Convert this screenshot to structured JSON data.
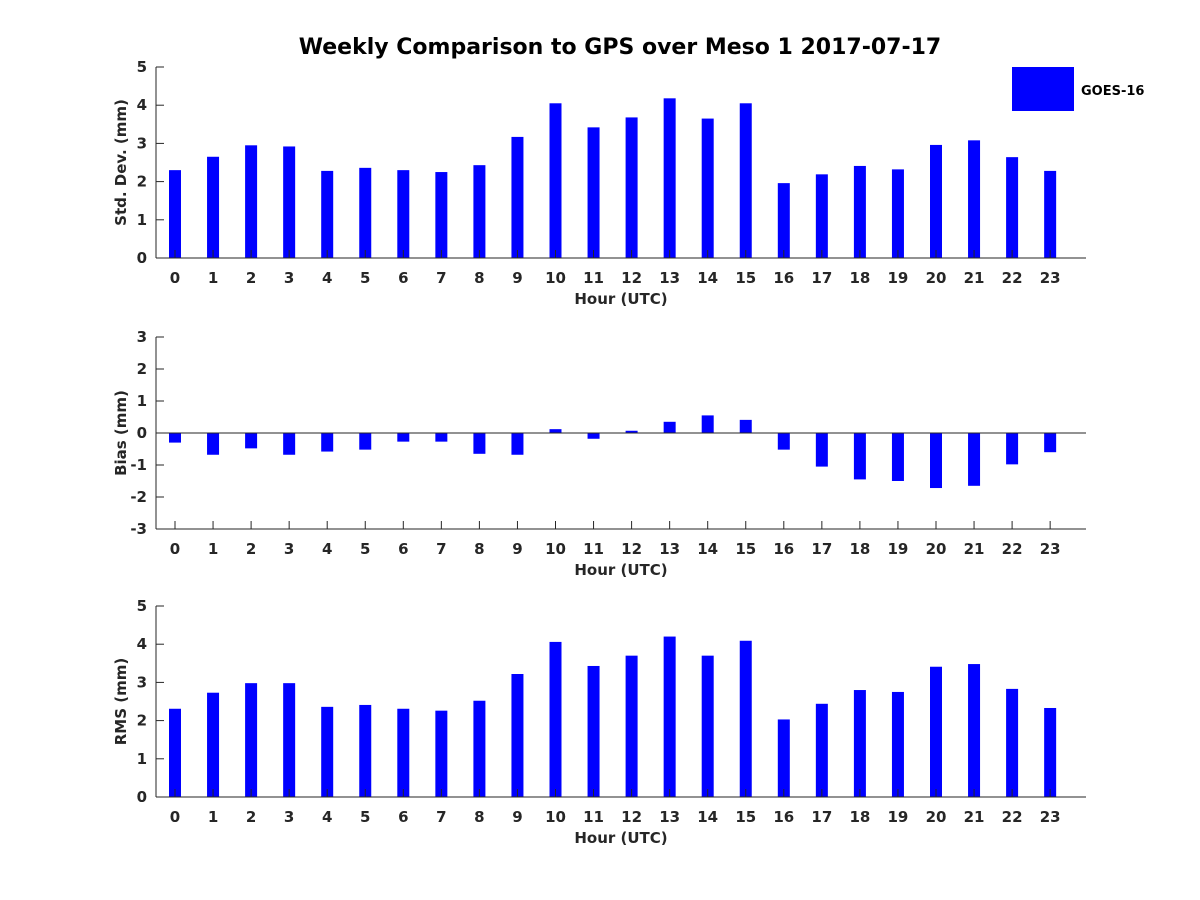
{
  "title": "Weekly Comparison to GPS over Meso 1 2017-07-17",
  "legend": {
    "label": "GOES-16",
    "color": "#0000ff",
    "placement": "top-right"
  },
  "chart_data": [
    {
      "type": "bar",
      "xlabel": "Hour (UTC)",
      "ylabel": "Std. Dev. (mm)",
      "ylim": [
        0,
        5
      ],
      "yticks": [
        0,
        1,
        2,
        3,
        4,
        5
      ],
      "categories": [
        "0",
        "1",
        "2",
        "3",
        "4",
        "5",
        "6",
        "7",
        "8",
        "9",
        "10",
        "11",
        "12",
        "13",
        "14",
        "15",
        "16",
        "17",
        "18",
        "19",
        "20",
        "21",
        "22",
        "23"
      ],
      "series": [
        {
          "name": "GOES-16",
          "color": "#0000ff",
          "values": [
            2.3,
            2.65,
            2.95,
            2.92,
            2.28,
            2.36,
            2.3,
            2.25,
            2.43,
            3.17,
            4.05,
            3.42,
            3.68,
            4.18,
            3.65,
            4.05,
            1.96,
            2.19,
            2.41,
            2.32,
            2.96,
            3.08,
            2.64,
            2.28
          ]
        }
      ],
      "grid": false
    },
    {
      "type": "bar",
      "xlabel": "Hour (UTC)",
      "ylabel": "Bias (mm)",
      "ylim": [
        -3,
        3
      ],
      "yticks": [
        -3,
        -2,
        -1,
        0,
        1,
        2,
        3
      ],
      "categories": [
        "0",
        "1",
        "2",
        "3",
        "4",
        "5",
        "6",
        "7",
        "8",
        "9",
        "10",
        "11",
        "12",
        "13",
        "14",
        "15",
        "16",
        "17",
        "18",
        "19",
        "20",
        "21",
        "22",
        "23"
      ],
      "series": [
        {
          "name": "GOES-16",
          "color": "#0000ff",
          "values": [
            -0.3,
            -0.68,
            -0.48,
            -0.68,
            -0.58,
            -0.52,
            -0.27,
            -0.27,
            -0.65,
            -0.68,
            0.12,
            -0.18,
            0.07,
            0.35,
            0.55,
            0.41,
            -0.52,
            -1.05,
            -1.45,
            -1.5,
            -1.72,
            -1.65,
            -0.98,
            -0.6
          ]
        }
      ],
      "grid": false
    },
    {
      "type": "bar",
      "xlabel": "Hour (UTC)",
      "ylabel": "RMS (mm)",
      "ylim": [
        0,
        5
      ],
      "yticks": [
        0,
        1,
        2,
        3,
        4,
        5
      ],
      "categories": [
        "0",
        "1",
        "2",
        "3",
        "4",
        "5",
        "6",
        "7",
        "8",
        "9",
        "10",
        "11",
        "12",
        "13",
        "14",
        "15",
        "16",
        "17",
        "18",
        "19",
        "20",
        "21",
        "22",
        "23"
      ],
      "series": [
        {
          "name": "GOES-16",
          "color": "#0000ff",
          "values": [
            2.31,
            2.73,
            2.98,
            2.98,
            2.36,
            2.41,
            2.31,
            2.26,
            2.52,
            3.22,
            4.06,
            3.43,
            3.7,
            4.2,
            3.7,
            4.09,
            2.03,
            2.44,
            2.8,
            2.75,
            3.41,
            3.48,
            2.83,
            2.33
          ]
        }
      ],
      "grid": false
    }
  ]
}
